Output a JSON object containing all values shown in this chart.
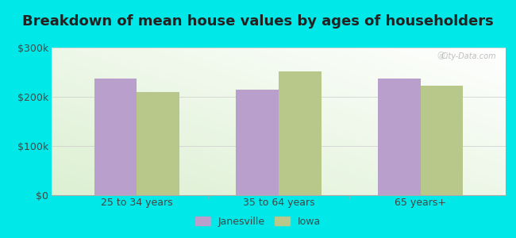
{
  "title": "Breakdown of mean house values by ages of householders",
  "categories": [
    "25 to 34 years",
    "35 to 64 years",
    "65 years+"
  ],
  "janesville_values": [
    237000,
    215000,
    237000
  ],
  "iowa_values": [
    210000,
    252000,
    222000
  ],
  "janesville_color": "#b89fcc",
  "iowa_color": "#b8c88a",
  "background_color": "#00e8e8",
  "ylim": [
    0,
    300000
  ],
  "yticks": [
    0,
    100000,
    200000,
    300000
  ],
  "ytick_labels": [
    "$0",
    "$100k",
    "$200k",
    "$300k"
  ],
  "legend_labels": [
    "Janesville",
    "Iowa"
  ],
  "bar_width": 0.3,
  "title_fontsize": 13,
  "tick_fontsize": 9,
  "legend_fontsize": 9,
  "watermark": "City-Data.com"
}
